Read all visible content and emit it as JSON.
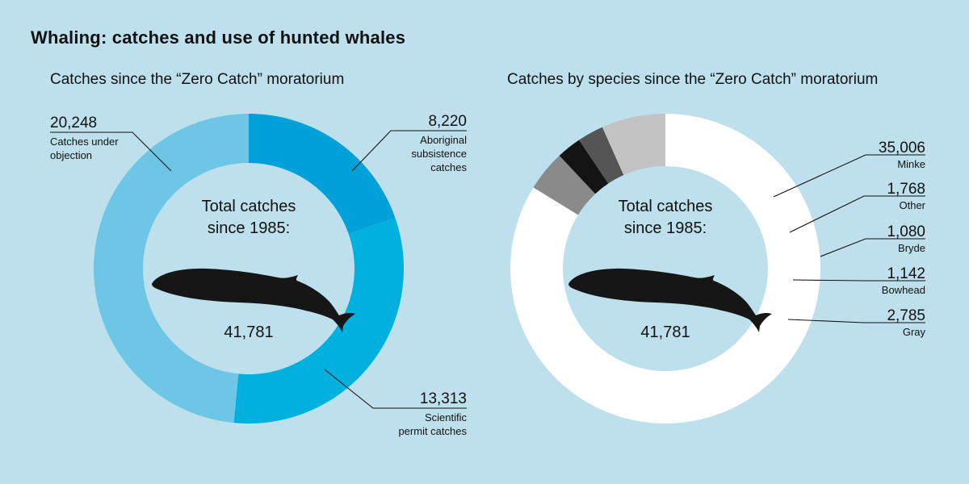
{
  "title": "Whaling: catches and use of hunted whales",
  "chart_data": [
    {
      "type": "pie",
      "subtitle": "Catches since the “Zero Catch” moratorium",
      "center_text": [
        "Total catches",
        "since 1985:"
      ],
      "total": "41,781",
      "series": [
        {
          "value": 8220,
          "value_label": "8,220",
          "label": [
            "Aboriginal",
            "subsistence",
            "catches"
          ],
          "color": "#00a0d8"
        },
        {
          "value": 13313,
          "value_label": "13,313",
          "label": [
            "Scientific",
            "permit catches"
          ],
          "color": "#00b1e0"
        },
        {
          "value": 20248,
          "value_label": "20,248",
          "label": [
            "Catches under",
            "objection"
          ],
          "color": "#6ec6e6"
        }
      ]
    },
    {
      "type": "pie",
      "subtitle": "Catches by species since the “Zero Catch” moratorium",
      "center_text": [
        "Total catches",
        "since 1985:"
      ],
      "total": "41,781",
      "series": [
        {
          "value": 35006,
          "value_label": "35,006",
          "label": [
            "Minke"
          ],
          "color": "#ffffff"
        },
        {
          "value": 1768,
          "value_label": "1,768",
          "label": [
            "Other"
          ],
          "color": "#8a8a8a"
        },
        {
          "value": 1080,
          "value_label": "1,080",
          "label": [
            "Bryde"
          ],
          "color": "#141414"
        },
        {
          "value": 1142,
          "value_label": "1,142",
          "label": [
            "Bowhead"
          ],
          "color": "#555555"
        },
        {
          "value": 2785,
          "value_label": "2,785",
          "label": [
            "Gray"
          ],
          "color": "#c3c3c3"
        }
      ]
    }
  ]
}
